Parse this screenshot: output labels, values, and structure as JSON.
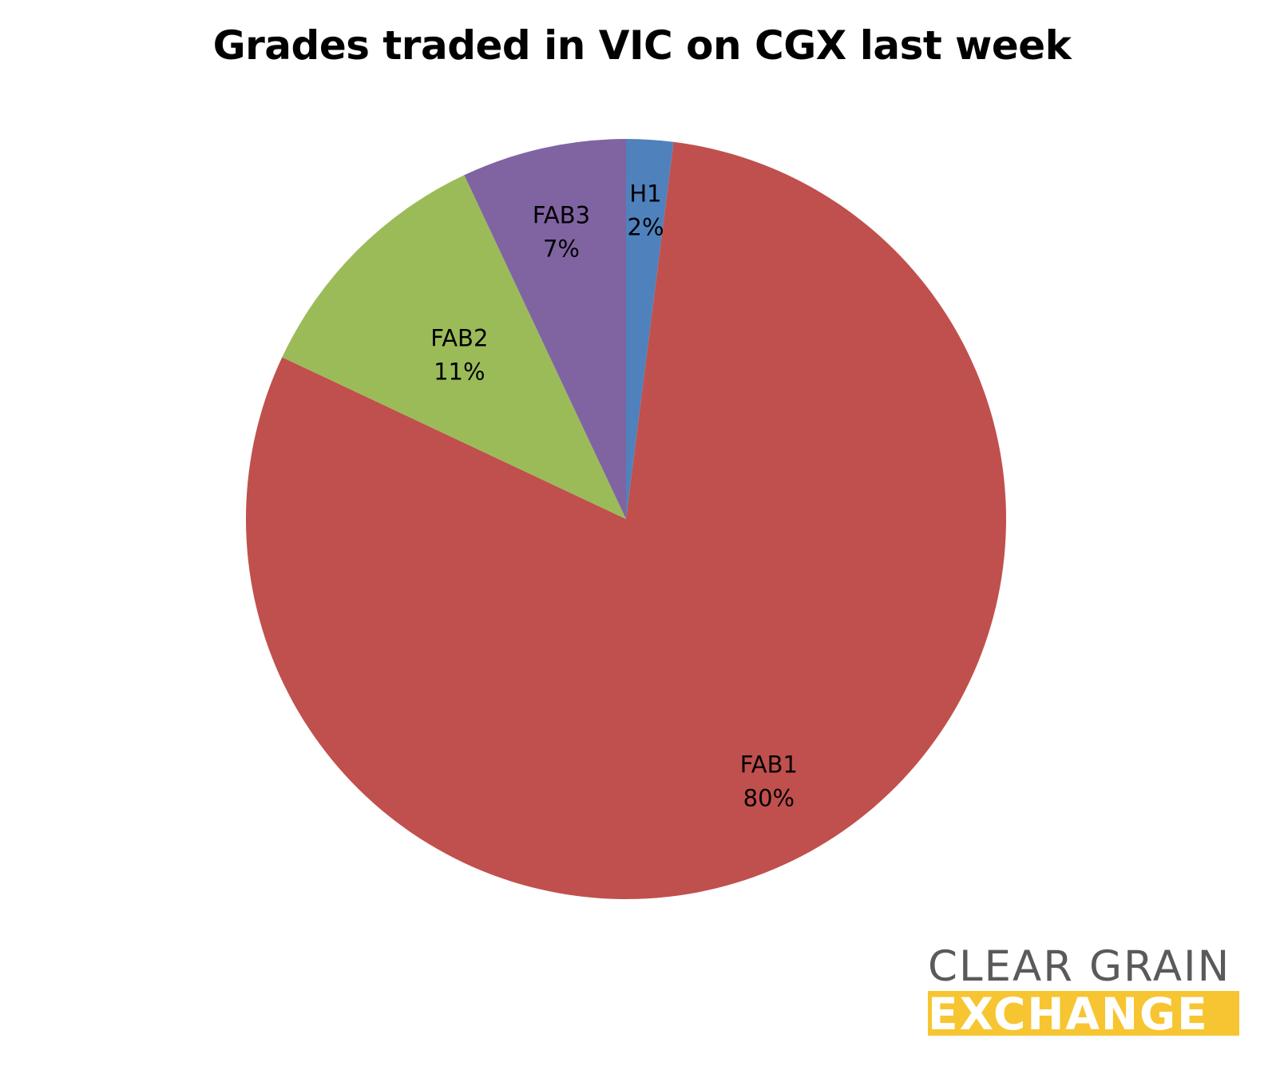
{
  "chart_data": {
    "type": "pie",
    "title": "Grades traded in VIC on CGX last week",
    "start_angle_deg": 0,
    "direction": "clockwise",
    "slices": [
      {
        "label": "H1",
        "value": 2,
        "value_label": "2%",
        "color": "#4f81bd"
      },
      {
        "label": "FAB1",
        "value": 80,
        "value_label": "80%",
        "color": "#c0504d"
      },
      {
        "label": "FAB2",
        "value": 11,
        "value_label": "11%",
        "color": "#9bbb59"
      },
      {
        "label": "FAB3",
        "value": 7,
        "value_label": "7%",
        "color": "#8064a2"
      }
    ],
    "legend": "none"
  },
  "branding": {
    "line1": "CLEAR GRAIN",
    "line2": "EXCHANGE",
    "line1_color": "#5a5a5a",
    "line2_background": "#f7c531"
  }
}
